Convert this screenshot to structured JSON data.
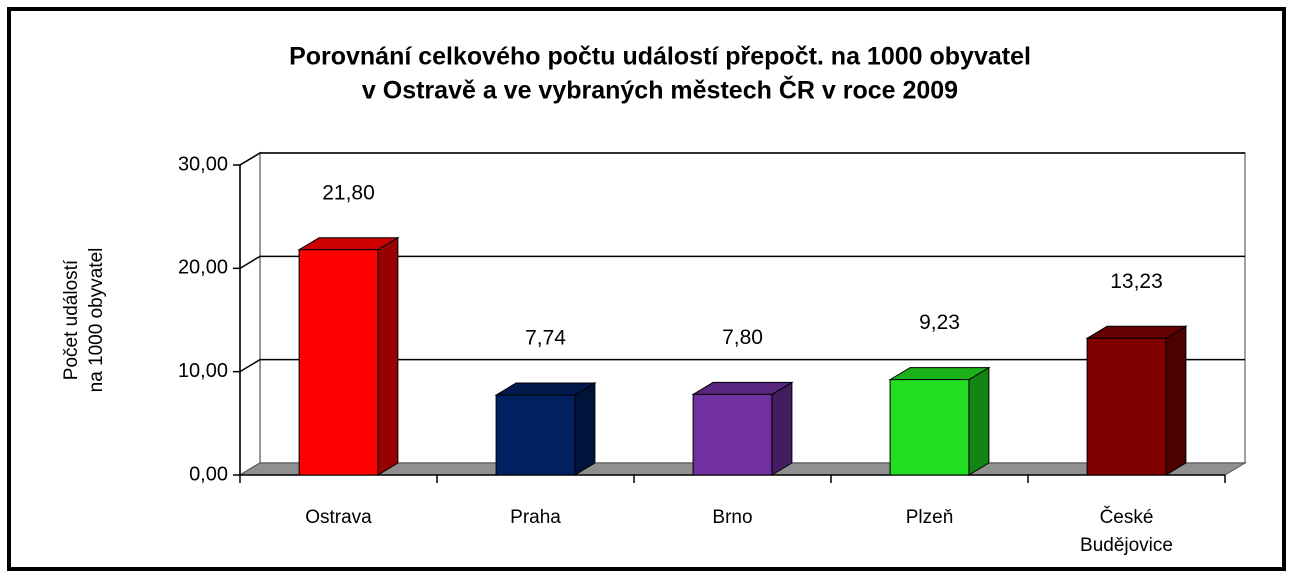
{
  "chart_data": {
    "type": "bar3d",
    "title": [
      "Porovnání celkového počtu událostí přepočt. na 1000 obyvatel",
      "v Ostravě a ve vybraných městech ČR v roce 2009"
    ],
    "y_axis_label": [
      "Počet  událostí",
      "na 1000 obyvatel"
    ],
    "categories": [
      "Ostrava",
      "Praha",
      "Brno",
      "Plzeň",
      "České Budějovice"
    ],
    "values": [
      21.8,
      7.74,
      7.8,
      9.23,
      13.23
    ],
    "value_labels": [
      "21,80",
      "7,74",
      "7,80",
      "9,23",
      "13,23"
    ],
    "colors": [
      "#ff0000",
      "#002060",
      "#7030a0",
      "#22dd22",
      "#800000"
    ],
    "ylim": [
      0,
      30
    ],
    "yticks": [
      {
        "value": 0,
        "label": "0,00"
      },
      {
        "value": 10,
        "label": "10,00"
      },
      {
        "value": 20,
        "label": "20,00"
      },
      {
        "value": 30,
        "label": "30,00"
      }
    ],
    "grid": true
  }
}
